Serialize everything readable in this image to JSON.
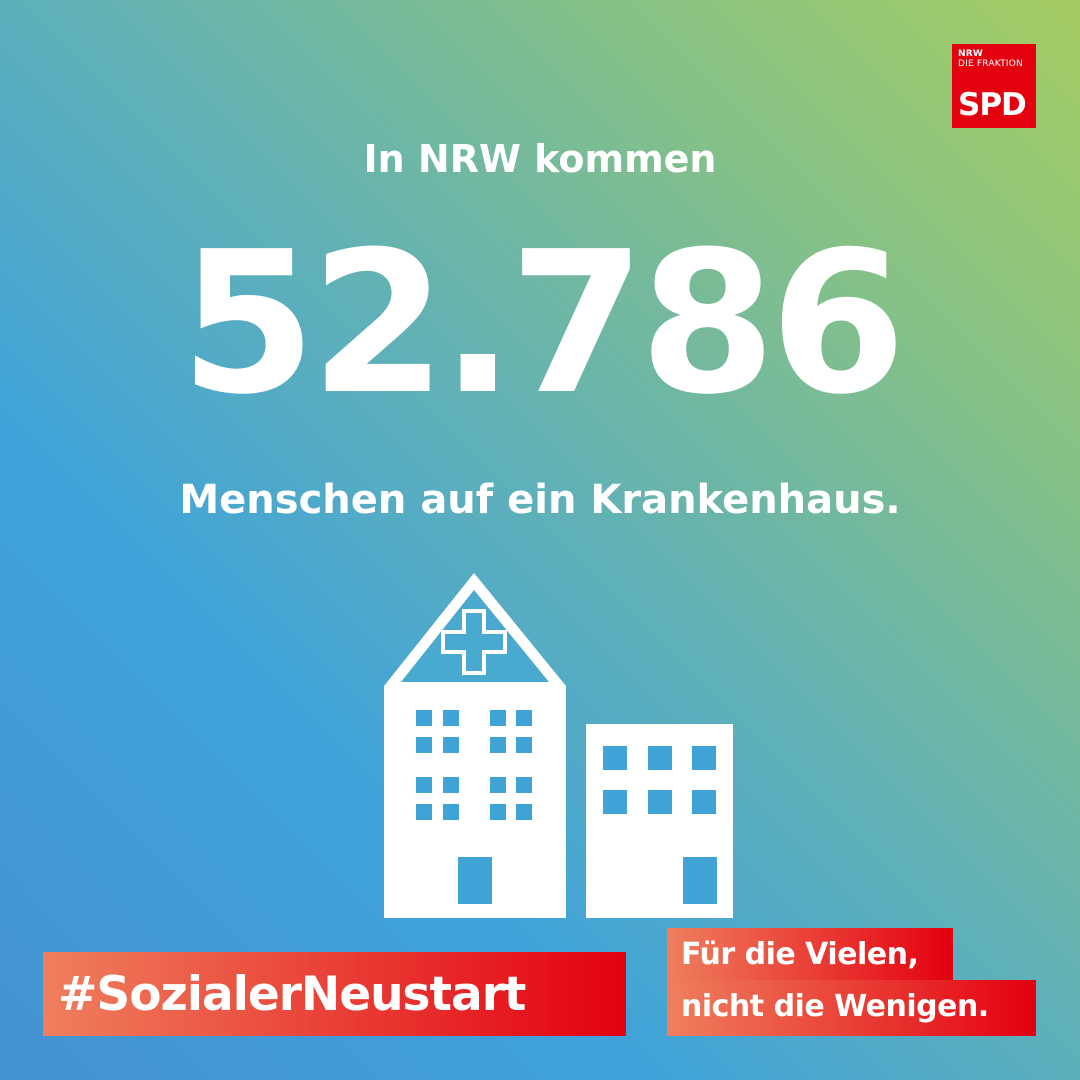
{
  "logo": {
    "line1": "NRW",
    "line2": "DIE FRAKTION",
    "line3": "SPD",
    "color": "#e3000f"
  },
  "headline": "In NRW kommen",
  "big_number": "52.786",
  "subline": "Menschen auf ein Krankenhaus.",
  "illustration": {
    "icon": "hospital-buildings-icon",
    "window_color": "#3fa3d6"
  },
  "hashtag": "#SozialerNeustart",
  "slogan": {
    "line1": "Für die Vielen,",
    "line2": "nicht die Wenigen."
  },
  "colors": {
    "gradient_top_right": "#a4cc62",
    "gradient_bottom_left": "#4592d2",
    "banner_start": "#ef7f5e",
    "banner_end": "#e3000f"
  }
}
